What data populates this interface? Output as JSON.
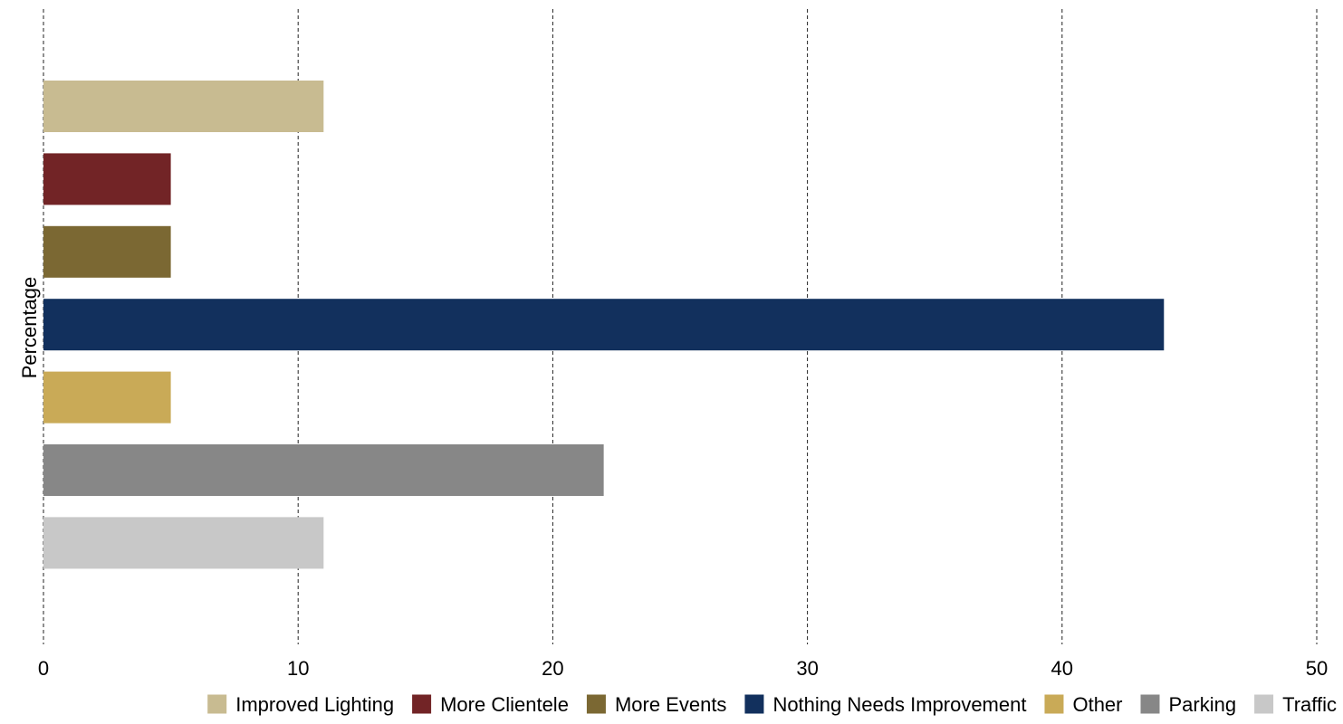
{
  "chart_data": {
    "type": "bar",
    "orientation": "horizontal",
    "title": "",
    "xlabel": "",
    "ylabel": "Percentage",
    "xlim": [
      0,
      50
    ],
    "xticks": [
      0,
      10,
      20,
      30,
      40,
      50
    ],
    "grid": "vertical dashed",
    "legend_position": "bottom",
    "categories": [
      "Improved Lighting",
      "More Clientele",
      "More Events",
      "Nothing Needs Improvement",
      "Other",
      "Parking",
      "Traffic"
    ],
    "values": [
      11,
      5,
      5,
      44,
      5,
      22,
      11
    ],
    "colors": [
      "#c8bb91",
      "#722426",
      "#7b6833",
      "#12305d",
      "#c9aa57",
      "#878787",
      "#c8c8c8"
    ]
  }
}
